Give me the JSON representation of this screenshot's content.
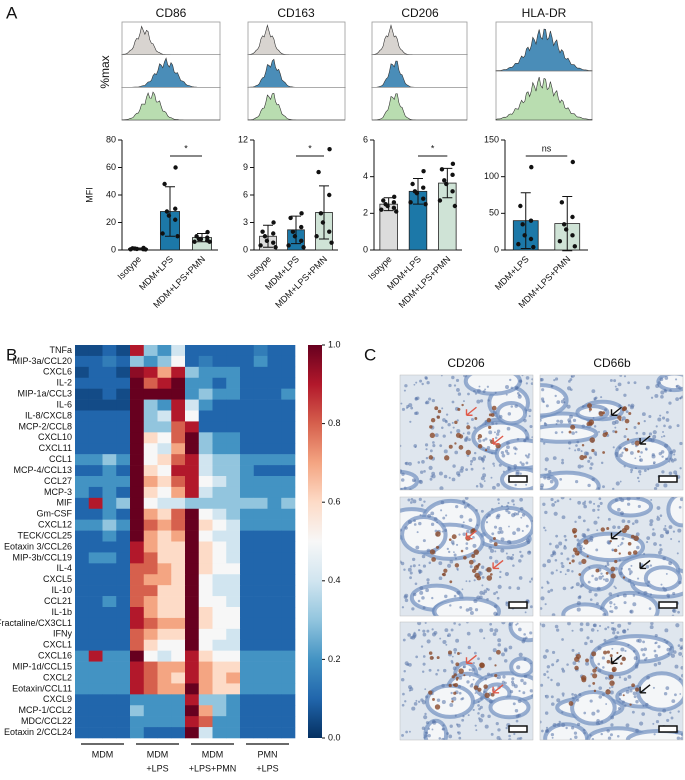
{
  "panels": {
    "a": "A",
    "b": "B",
    "c": "C"
  },
  "histograms": {
    "ylabel": "%max",
    "titles": [
      "CD86",
      "CD163",
      "CD206",
      "HLA-DR"
    ]
  },
  "images": {
    "titles": [
      "CD206",
      "CD66b"
    ]
  },
  "chart_data": [
    {
      "type": "bar",
      "ylabel": "MFI",
      "categories": [
        "Isotype",
        "MDM+LPS",
        "MDM+LPS+PMN"
      ],
      "values": [
        1,
        28,
        9
      ],
      "errors": [
        0.5,
        18,
        3
      ],
      "points": [
        [
          1.5,
          1.2,
          1,
          1,
          0.8,
          0.6,
          0.5,
          0.4
        ],
        [
          60,
          48,
          30,
          28,
          25,
          22,
          12,
          10
        ],
        [
          13,
          10,
          9,
          8,
          8,
          7,
          6,
          6
        ]
      ],
      "colors": [
        "#dcdcdc",
        "#1c78a8",
        "#cfe3d6"
      ],
      "ylim": [
        0,
        80
      ],
      "yticks": [
        0,
        20,
        40,
        60,
        80
      ],
      "significance": "*"
    },
    {
      "type": "bar",
      "categories": [
        "Isotype",
        "MDM+LPS",
        "MDM+LPS+PMN"
      ],
      "values": [
        1.5,
        2.2,
        4.1
      ],
      "errors": [
        1.2,
        1.5,
        2.9
      ],
      "points": [
        [
          3,
          2,
          1.8,
          1.5,
          1,
          0.8,
          0.5,
          0.3
        ],
        [
          4,
          3.5,
          2.5,
          2,
          1.5,
          1,
          0.5,
          0.3
        ],
        [
          11,
          8.5,
          6,
          4,
          3,
          2,
          1.5,
          0.8
        ]
      ],
      "colors": [
        "#dcdcdc",
        "#1c78a8",
        "#cfe3d6"
      ],
      "ylim": [
        0,
        12
      ],
      "yticks": [
        0,
        3,
        6,
        9,
        12
      ],
      "significance": "*"
    },
    {
      "type": "bar",
      "categories": [
        "Isotype",
        "MDM+LPS",
        "MDM+LPS+PMN"
      ],
      "values": [
        2.5,
        3.2,
        3.65
      ],
      "errors": [
        0.35,
        0.7,
        0.8
      ],
      "points": [
        [
          2.9,
          2.7,
          2.6,
          2.5,
          2.4,
          2.3,
          2.2,
          2.1
        ],
        [
          4.3,
          3.6,
          3.4,
          3.2,
          3.1,
          2.8,
          2.6,
          2.5
        ],
        [
          4.7,
          4.4,
          4.1,
          3.8,
          3.6,
          3.2,
          2.7,
          2.4
        ]
      ],
      "colors": [
        "#dcdcdc",
        "#1c78a8",
        "#cfe3d6"
      ],
      "ylim": [
        0,
        6
      ],
      "yticks": [
        0,
        2,
        4,
        6
      ],
      "significance": "*"
    },
    {
      "type": "bar",
      "categories": [
        "MDM+LPS",
        "MDM+LPS+PMN"
      ],
      "values": [
        40,
        36
      ],
      "errors": [
        38,
        37
      ],
      "points": [
        [
          113,
          60,
          40,
          35,
          20,
          15,
          8,
          4
        ],
        [
          120,
          65,
          45,
          35,
          28,
          20,
          12,
          5
        ]
      ],
      "colors": [
        "#1c78a8",
        "#cfe3d6"
      ],
      "ylim": [
        0,
        150
      ],
      "yticks": [
        0,
        50,
        100,
        150
      ],
      "significance": "ns"
    },
    {
      "type": "heatmap",
      "rows": [
        "TNFa",
        "MIP-3a/CCL20",
        "CXCL6",
        "IL-2",
        "MIP-1a/CCL3",
        "IL-6",
        "IL-8/CXCL8",
        "MCP-2/CCL8",
        "CXCL10",
        "CXCL11",
        "CCL1",
        "MCP-4/CCL13",
        "CCL27",
        "MCP-3",
        "MIF",
        "Gm-CSF",
        "CXCL12",
        "TECK/CCL25",
        "Eotaxin 3/CCL26",
        "MIP-3b/CCL19",
        "IL-4",
        "CXCL5",
        "IL-10",
        "CCL21",
        "IL-1b",
        "Fractaline/CX3CL1",
        "IFNy",
        "CXCL1",
        "CXCL16",
        "MIP-1d/CCL15",
        "CXCL2",
        "Eotaxin/CCL11",
        "CXCL9",
        "MCP-1/CCL2",
        "MDC/CCL22",
        "Eotaxin 2/CCL24"
      ],
      "groups": [
        [
          "MDM"
        ],
        [
          "MDM",
          "+LPS"
        ],
        [
          "MDM",
          "+LPS+PMN"
        ],
        [
          "PMN",
          "+LPS"
        ]
      ],
      "values": [
        [
          0.05,
          0.05,
          0.1,
          0.05,
          0.9,
          0.3,
          0.2,
          0.4,
          0.1,
          0.1,
          0.1,
          0.1,
          0.1,
          0.15,
          0.1,
          0.1
        ],
        [
          0.1,
          0.1,
          0.15,
          0.1,
          0.3,
          0.2,
          0.3,
          0.5,
          0.1,
          0.15,
          0.1,
          0.1,
          0.1,
          0.2,
          0.1,
          0.1
        ],
        [
          0.05,
          0.1,
          0.1,
          0.05,
          0.95,
          0.9,
          0.7,
          0.9,
          0.3,
          0.2,
          0.2,
          0.2,
          0.1,
          0.1,
          0.1,
          0.1
        ],
        [
          0.1,
          0.1,
          0.1,
          0.1,
          1.0,
          0.8,
          0.9,
          1.0,
          0.2,
          0.2,
          0.1,
          0.2,
          0.1,
          0.1,
          0.1,
          0.1
        ],
        [
          0.05,
          0.05,
          0.1,
          0.05,
          1.0,
          1.0,
          1.0,
          1.0,
          0.2,
          0.3,
          0.2,
          0.2,
          0.1,
          0.1,
          0.1,
          0.2
        ],
        [
          0.05,
          0.05,
          0.05,
          0.05,
          1.0,
          0.3,
          0.2,
          0.9,
          0.4,
          0.2,
          0.1,
          0.1,
          0.1,
          0.1,
          0.1,
          0.1
        ],
        [
          0.1,
          0.1,
          0.1,
          0.1,
          1.0,
          0.3,
          0.4,
          0.9,
          0.5,
          0.1,
          0.1,
          0.1,
          0.1,
          0.1,
          0.1,
          0.1
        ],
        [
          0.1,
          0.1,
          0.1,
          0.1,
          1.0,
          0.3,
          0.3,
          0.8,
          0.9,
          0.1,
          0.1,
          0.1,
          0.1,
          0.1,
          0.1,
          0.1
        ],
        [
          0.1,
          0.1,
          0.1,
          0.1,
          1.0,
          0.6,
          0.5,
          0.8,
          1.0,
          0.3,
          0.2,
          0.2,
          0.1,
          0.1,
          0.1,
          0.1
        ],
        [
          0.1,
          0.1,
          0.1,
          0.1,
          1.0,
          0.5,
          0.4,
          0.7,
          1.0,
          0.3,
          0.2,
          0.2,
          0.1,
          0.1,
          0.1,
          0.1
        ],
        [
          0.2,
          0.2,
          0.3,
          0.2,
          1.0,
          0.5,
          0.6,
          0.8,
          0.9,
          0.4,
          0.3,
          0.3,
          0.2,
          0.2,
          0.2,
          0.2
        ],
        [
          0.1,
          0.1,
          0.2,
          0.1,
          1.0,
          0.6,
          0.5,
          0.9,
          0.9,
          0.4,
          0.3,
          0.3,
          0.2,
          0.1,
          0.1,
          0.1
        ],
        [
          0.2,
          0.2,
          0.2,
          0.2,
          1.0,
          0.7,
          0.6,
          0.8,
          0.9,
          0.5,
          0.4,
          0.3,
          0.2,
          0.2,
          0.2,
          0.2
        ],
        [
          0.2,
          0.1,
          0.2,
          0.1,
          1.0,
          0.6,
          0.5,
          0.7,
          0.9,
          0.4,
          0.3,
          0.3,
          0.2,
          0.2,
          0.2,
          0.2
        ],
        [
          0.1,
          0.9,
          0.2,
          0.3,
          1.0,
          0.5,
          0.4,
          0.4,
          0.3,
          0.3,
          0.3,
          0.3,
          0.3,
          0.3,
          0.2,
          0.3
        ],
        [
          0.1,
          0.1,
          0.2,
          0.1,
          1.0,
          0.7,
          0.6,
          0.8,
          1.0,
          0.5,
          0.4,
          0.3,
          0.2,
          0.2,
          0.2,
          0.2
        ],
        [
          0.2,
          0.2,
          0.3,
          0.2,
          1.0,
          0.8,
          0.7,
          0.8,
          1.0,
          0.6,
          0.5,
          0.4,
          0.2,
          0.2,
          0.2,
          0.2
        ],
        [
          0.1,
          0.1,
          0.2,
          0.1,
          1.0,
          0.7,
          0.6,
          0.7,
          1.0,
          0.5,
          0.4,
          0.4,
          0.1,
          0.1,
          0.1,
          0.1
        ],
        [
          0.1,
          0.1,
          0.1,
          0.1,
          0.9,
          0.7,
          0.6,
          0.6,
          1.0,
          0.6,
          0.5,
          0.4,
          0.1,
          0.1,
          0.1,
          0.1
        ],
        [
          0.1,
          0.2,
          0.2,
          0.1,
          0.9,
          0.8,
          0.6,
          0.6,
          1.0,
          0.6,
          0.5,
          0.4,
          0.1,
          0.1,
          0.1,
          0.1
        ],
        [
          0.1,
          0.1,
          0.1,
          0.1,
          0.8,
          0.8,
          0.7,
          0.6,
          1.0,
          0.6,
          0.5,
          0.5,
          0.1,
          0.1,
          0.1,
          0.1
        ],
        [
          0.1,
          0.1,
          0.1,
          0.1,
          0.8,
          0.7,
          0.7,
          0.6,
          1.0,
          0.5,
          0.4,
          0.4,
          0.1,
          0.1,
          0.1,
          0.1
        ],
        [
          0.1,
          0.1,
          0.1,
          0.1,
          0.8,
          0.8,
          0.6,
          0.6,
          1.0,
          0.5,
          0.4,
          0.4,
          0.1,
          0.1,
          0.1,
          0.1
        ],
        [
          0.1,
          0.1,
          0.2,
          0.1,
          0.8,
          0.7,
          0.6,
          0.6,
          1.0,
          0.5,
          0.5,
          0.4,
          0.1,
          0.1,
          0.1,
          0.1
        ],
        [
          0.1,
          0.1,
          0.1,
          0.1,
          0.9,
          0.7,
          0.6,
          0.6,
          1.0,
          0.6,
          0.5,
          0.5,
          0.1,
          0.1,
          0.1,
          0.1
        ],
        [
          0.1,
          0.1,
          0.1,
          0.1,
          0.9,
          0.8,
          0.7,
          0.7,
          1.0,
          0.6,
          0.5,
          0.5,
          0.1,
          0.1,
          0.1,
          0.1
        ],
        [
          0.1,
          0.1,
          0.1,
          0.1,
          0.8,
          0.7,
          0.6,
          0.6,
          1.0,
          0.5,
          0.5,
          0.4,
          0.1,
          0.1,
          0.1,
          0.1
        ],
        [
          0.1,
          0.1,
          0.1,
          0.1,
          0.8,
          0.6,
          0.5,
          0.5,
          1.0,
          0.5,
          0.4,
          0.4,
          0.1,
          0.1,
          0.1,
          0.1
        ],
        [
          0.2,
          0.9,
          0.2,
          0.2,
          1.0,
          0.5,
          0.4,
          0.5,
          0.9,
          0.6,
          0.5,
          0.5,
          0.2,
          0.2,
          0.2,
          0.2
        ],
        [
          0.2,
          0.2,
          0.2,
          0.2,
          0.9,
          0.8,
          0.7,
          0.7,
          0.9,
          0.7,
          0.6,
          0.6,
          0.2,
          0.2,
          0.2,
          0.2
        ],
        [
          0.2,
          0.2,
          0.2,
          0.2,
          0.9,
          0.8,
          0.7,
          0.6,
          0.9,
          0.7,
          0.6,
          0.7,
          0.2,
          0.2,
          0.2,
          0.2
        ],
        [
          0.2,
          0.2,
          0.2,
          0.2,
          0.9,
          0.8,
          0.7,
          0.7,
          1.0,
          0.7,
          0.6,
          0.6,
          0.2,
          0.2,
          0.2,
          0.2
        ],
        [
          0.1,
          0.1,
          0.1,
          0.1,
          0.2,
          0.2,
          0.2,
          0.2,
          0.9,
          0.3,
          0.3,
          0.2,
          0.1,
          0.1,
          0.1,
          0.1
        ],
        [
          0.1,
          0.1,
          0.1,
          0.1,
          0.3,
          0.2,
          0.2,
          0.2,
          1.0,
          0.7,
          0.3,
          0.2,
          0.1,
          0.1,
          0.1,
          0.1
        ],
        [
          0.1,
          0.1,
          0.1,
          0.1,
          0.2,
          0.2,
          0.2,
          0.2,
          0.9,
          0.8,
          0.2,
          0.2,
          0.1,
          0.1,
          0.1,
          0.1
        ],
        [
          0.1,
          0.1,
          0.1,
          0.1,
          0.2,
          0.1,
          0.1,
          0.1,
          1.0,
          0.4,
          0.2,
          0.2,
          0.1,
          0.1,
          0.1,
          0.1
        ]
      ],
      "zlim": [
        0,
        1
      ],
      "zticks": [
        {
          "value": 0,
          "label": "0.0"
        },
        {
          "value": 0.2,
          "label": "0.2"
        },
        {
          "value": 0.4,
          "label": "0.4"
        },
        {
          "value": 0.6,
          "label": "0.6"
        },
        {
          "value": 0.8,
          "label": "0.8"
        },
        {
          "value": 1,
          "label": "1.0"
        }
      ],
      "colors": [
        "#053061",
        "#2166ac",
        "#4393c3",
        "#92c5de",
        "#d1e5f0",
        "#f7f7f7",
        "#fddbc7",
        "#f4a582",
        "#d6604d",
        "#b2182b",
        "#67001f"
      ]
    }
  ]
}
